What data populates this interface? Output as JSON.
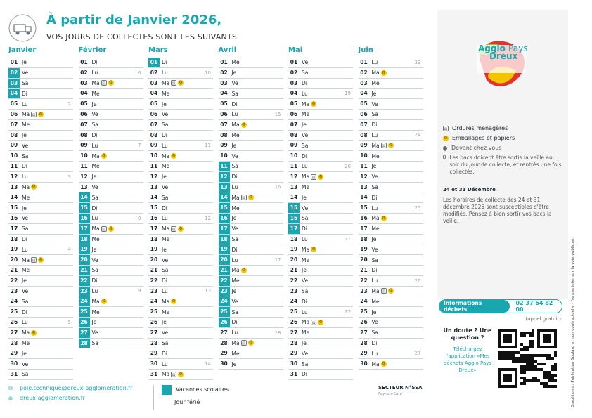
{
  "header": {
    "title": "À partir de Janvier 2026,",
    "subtitle": "VOS JOURS DE COLLECTES SONT LES SUIVANTS"
  },
  "colors": {
    "accent": "#1aa6b0",
    "yellow": "#f2c500"
  },
  "icons": {
    "header": "garbage-truck-icon",
    "emballages": "yellow-bin-icon",
    "om": "grey-bin-icon"
  },
  "months": [
    {
      "name": "Janvier",
      "days": [
        {
          "n": "01",
          "d": "Je"
        },
        {
          "n": "02",
          "d": "Ve",
          "h": true
        },
        {
          "n": "03",
          "d": "Sa",
          "h": true
        },
        {
          "n": "04",
          "d": "Di",
          "h": true
        },
        {
          "n": "05",
          "d": "Lu",
          "w": "2"
        },
        {
          "n": "06",
          "d": "Ma",
          "om": true,
          "emb": true
        },
        {
          "n": "07",
          "d": "Me"
        },
        {
          "n": "08",
          "d": "Je"
        },
        {
          "n": "09",
          "d": "Ve"
        },
        {
          "n": "10",
          "d": "Sa"
        },
        {
          "n": "11",
          "d": "Di"
        },
        {
          "n": "12",
          "d": "Lu",
          "w": "3"
        },
        {
          "n": "13",
          "d": "Ma",
          "emb": true
        },
        {
          "n": "14",
          "d": "Me"
        },
        {
          "n": "15",
          "d": "Je"
        },
        {
          "n": "16",
          "d": "Ve"
        },
        {
          "n": "17",
          "d": "Sa"
        },
        {
          "n": "18",
          "d": "Di"
        },
        {
          "n": "19",
          "d": "Lu",
          "w": "4"
        },
        {
          "n": "20",
          "d": "Ma",
          "om": true,
          "emb": true
        },
        {
          "n": "21",
          "d": "Me"
        },
        {
          "n": "22",
          "d": "Je"
        },
        {
          "n": "23",
          "d": "Ve"
        },
        {
          "n": "24",
          "d": "Sa"
        },
        {
          "n": "25",
          "d": "Di"
        },
        {
          "n": "26",
          "d": "Lu",
          "w": "5"
        },
        {
          "n": "27",
          "d": "Ma",
          "emb": true
        },
        {
          "n": "28",
          "d": "Me"
        },
        {
          "n": "29",
          "d": "Je"
        },
        {
          "n": "30",
          "d": "Ve"
        },
        {
          "n": "31",
          "d": "Sa"
        }
      ]
    },
    {
      "name": "Février",
      "days": [
        {
          "n": "01",
          "d": "Di"
        },
        {
          "n": "02",
          "d": "Lu",
          "w": "6"
        },
        {
          "n": "03",
          "d": "Ma",
          "om": true,
          "emb": true
        },
        {
          "n": "04",
          "d": "Me"
        },
        {
          "n": "05",
          "d": "Je"
        },
        {
          "n": "06",
          "d": "Ve"
        },
        {
          "n": "07",
          "d": "Sa"
        },
        {
          "n": "08",
          "d": "Di"
        },
        {
          "n": "09",
          "d": "Lu",
          "w": "7"
        },
        {
          "n": "10",
          "d": "Ma",
          "emb": true
        },
        {
          "n": "11",
          "d": "Me"
        },
        {
          "n": "12",
          "d": "Je"
        },
        {
          "n": "13",
          "d": "Ve"
        },
        {
          "n": "14",
          "d": "Sa",
          "h": true
        },
        {
          "n": "15",
          "d": "Di",
          "h": true
        },
        {
          "n": "16",
          "d": "Lu",
          "h": true,
          "w": "8"
        },
        {
          "n": "17",
          "d": "Ma",
          "h": true,
          "om": true,
          "emb": true
        },
        {
          "n": "18",
          "d": "Me",
          "h": true
        },
        {
          "n": "19",
          "d": "Je",
          "h": true
        },
        {
          "n": "20",
          "d": "Ve",
          "h": true
        },
        {
          "n": "21",
          "d": "Sa",
          "h": true
        },
        {
          "n": "22",
          "d": "Di",
          "h": true
        },
        {
          "n": "23",
          "d": "Lu",
          "h": true,
          "w": "9"
        },
        {
          "n": "24",
          "d": "Ma",
          "h": true,
          "emb": true
        },
        {
          "n": "25",
          "d": "Me",
          "h": true
        },
        {
          "n": "26",
          "d": "Je",
          "h": true
        },
        {
          "n": "27",
          "d": "Ve",
          "h": true
        },
        {
          "n": "28",
          "d": "Sa",
          "h": true
        }
      ]
    },
    {
      "name": "Mars",
      "days": [
        {
          "n": "01",
          "d": "Di",
          "h": true
        },
        {
          "n": "02",
          "d": "Lu",
          "w": "10"
        },
        {
          "n": "03",
          "d": "Ma",
          "om": true,
          "emb": true
        },
        {
          "n": "04",
          "d": "Me"
        },
        {
          "n": "05",
          "d": "Je"
        },
        {
          "n": "06",
          "d": "Ve"
        },
        {
          "n": "07",
          "d": "Sa"
        },
        {
          "n": "08",
          "d": "Di"
        },
        {
          "n": "09",
          "d": "Lu",
          "w": "11"
        },
        {
          "n": "10",
          "d": "Ma",
          "emb": true
        },
        {
          "n": "11",
          "d": "Me"
        },
        {
          "n": "12",
          "d": "Je"
        },
        {
          "n": "13",
          "d": "Ve"
        },
        {
          "n": "14",
          "d": "Sa"
        },
        {
          "n": "15",
          "d": "Di"
        },
        {
          "n": "16",
          "d": "Lu",
          "w": "12"
        },
        {
          "n": "17",
          "d": "Ma",
          "om": true,
          "emb": true
        },
        {
          "n": "18",
          "d": "Me"
        },
        {
          "n": "19",
          "d": "Je"
        },
        {
          "n": "20",
          "d": "Ve"
        },
        {
          "n": "21",
          "d": "Sa"
        },
        {
          "n": "22",
          "d": "Di"
        },
        {
          "n": "23",
          "d": "Lu",
          "w": "13"
        },
        {
          "n": "24",
          "d": "Ma",
          "emb": true
        },
        {
          "n": "25",
          "d": "Me"
        },
        {
          "n": "26",
          "d": "Je"
        },
        {
          "n": "27",
          "d": "Ve"
        },
        {
          "n": "28",
          "d": "Sa"
        },
        {
          "n": "29",
          "d": "Di"
        },
        {
          "n": "30",
          "d": "Lu",
          "w": "14"
        },
        {
          "n": "31",
          "d": "Ma",
          "om": true,
          "emb": true
        }
      ]
    },
    {
      "name": "Avril",
      "days": [
        {
          "n": "01",
          "d": "Me"
        },
        {
          "n": "02",
          "d": "Je"
        },
        {
          "n": "03",
          "d": "Ve"
        },
        {
          "n": "04",
          "d": "Sa"
        },
        {
          "n": "05",
          "d": "Di"
        },
        {
          "n": "06",
          "d": "Lu",
          "w": "15"
        },
        {
          "n": "07",
          "d": "Ma",
          "emb": true
        },
        {
          "n": "08",
          "d": "Me"
        },
        {
          "n": "09",
          "d": "Je"
        },
        {
          "n": "10",
          "d": "Ve"
        },
        {
          "n": "11",
          "d": "Sa",
          "h": true
        },
        {
          "n": "12",
          "d": "Di",
          "h": true
        },
        {
          "n": "13",
          "d": "Lu",
          "h": true,
          "w": "16"
        },
        {
          "n": "14",
          "d": "Ma",
          "h": true,
          "om": true,
          "emb": true
        },
        {
          "n": "15",
          "d": "Me",
          "h": true
        },
        {
          "n": "16",
          "d": "Je",
          "h": true
        },
        {
          "n": "17",
          "d": "Ve",
          "h": true
        },
        {
          "n": "18",
          "d": "Sa",
          "h": true
        },
        {
          "n": "19",
          "d": "Di",
          "h": true
        },
        {
          "n": "20",
          "d": "Lu",
          "h": true,
          "w": "17"
        },
        {
          "n": "21",
          "d": "Ma",
          "h": true,
          "emb": true
        },
        {
          "n": "22",
          "d": "Me",
          "h": true
        },
        {
          "n": "23",
          "d": "Je",
          "h": true
        },
        {
          "n": "24",
          "d": "Ve",
          "h": true
        },
        {
          "n": "25",
          "d": "Sa",
          "h": true
        },
        {
          "n": "26",
          "d": "Di",
          "h": true
        },
        {
          "n": "27",
          "d": "Lu",
          "w": "18"
        },
        {
          "n": "28",
          "d": "Ma",
          "om": true,
          "emb": true
        },
        {
          "n": "29",
          "d": "Me"
        },
        {
          "n": "30",
          "d": "Je"
        }
      ]
    },
    {
      "name": "Mai",
      "days": [
        {
          "n": "01",
          "d": "Ve"
        },
        {
          "n": "02",
          "d": "Sa"
        },
        {
          "n": "03",
          "d": "Di"
        },
        {
          "n": "04",
          "d": "Lu",
          "w": "19"
        },
        {
          "n": "05",
          "d": "Ma",
          "emb": true
        },
        {
          "n": "06",
          "d": "Me"
        },
        {
          "n": "07",
          "d": "Je"
        },
        {
          "n": "08",
          "d": "Ve"
        },
        {
          "n": "09",
          "d": "Sa"
        },
        {
          "n": "10",
          "d": "Di"
        },
        {
          "n": "11",
          "d": "Lu",
          "w": "20"
        },
        {
          "n": "12",
          "d": "Ma",
          "om": true,
          "emb": true
        },
        {
          "n": "13",
          "d": "Me"
        },
        {
          "n": "14",
          "d": "Je"
        },
        {
          "n": "15",
          "d": "Ve",
          "h": true
        },
        {
          "n": "16",
          "d": "Sa",
          "h": true
        },
        {
          "n": "17",
          "d": "Di",
          "h": true
        },
        {
          "n": "18",
          "d": "Lu",
          "w": "21"
        },
        {
          "n": "19",
          "d": "Ma",
          "emb": true
        },
        {
          "n": "20",
          "d": "Me"
        },
        {
          "n": "21",
          "d": "Je"
        },
        {
          "n": "22",
          "d": "Ve"
        },
        {
          "n": "23",
          "d": "Sa"
        },
        {
          "n": "24",
          "d": "Di"
        },
        {
          "n": "25",
          "d": "Lu",
          "w": "22"
        },
        {
          "n": "26",
          "d": "Ma",
          "om": true,
          "emb": true
        },
        {
          "n": "27",
          "d": "Me"
        },
        {
          "n": "28",
          "d": "Je"
        },
        {
          "n": "29",
          "d": "Ve"
        },
        {
          "n": "30",
          "d": "Sa"
        },
        {
          "n": "31",
          "d": "Di"
        }
      ]
    },
    {
      "name": "Juin",
      "days": [
        {
          "n": "01",
          "d": "Lu",
          "w": "23"
        },
        {
          "n": "02",
          "d": "Ma",
          "emb": true
        },
        {
          "n": "03",
          "d": "Me"
        },
        {
          "n": "04",
          "d": "Je"
        },
        {
          "n": "05",
          "d": "Ve"
        },
        {
          "n": "06",
          "d": "Sa"
        },
        {
          "n": "07",
          "d": "Di"
        },
        {
          "n": "08",
          "d": "Lu",
          "w": "24"
        },
        {
          "n": "09",
          "d": "Ma",
          "om": true,
          "emb": true
        },
        {
          "n": "10",
          "d": "Me"
        },
        {
          "n": "11",
          "d": "Je"
        },
        {
          "n": "12",
          "d": "Ve"
        },
        {
          "n": "13",
          "d": "Sa"
        },
        {
          "n": "14",
          "d": "Di"
        },
        {
          "n": "15",
          "d": "Lu",
          "w": "25"
        },
        {
          "n": "16",
          "d": "Ma",
          "emb": true
        },
        {
          "n": "17",
          "d": "Me"
        },
        {
          "n": "18",
          "d": "Je"
        },
        {
          "n": "19",
          "d": "Ve"
        },
        {
          "n": "20",
          "d": "Sa"
        },
        {
          "n": "21",
          "d": "Di"
        },
        {
          "n": "22",
          "d": "Lu",
          "w": "26"
        },
        {
          "n": "23",
          "d": "Ma",
          "om": true,
          "emb": true
        },
        {
          "n": "24",
          "d": "Me"
        },
        {
          "n": "25",
          "d": "Je"
        },
        {
          "n": "26",
          "d": "Ve"
        },
        {
          "n": "27",
          "d": "Sa"
        },
        {
          "n": "28",
          "d": "Di"
        },
        {
          "n": "29",
          "d": "Lu",
          "w": "27"
        },
        {
          "n": "30",
          "d": "Ma",
          "emb": true
        }
      ]
    }
  ],
  "sidebar": {
    "logo": {
      "line1": "Agglo",
      "line2": "Pays",
      "line3": "Dreux"
    },
    "legend": {
      "om": "Ordures ménagères",
      "emb": "Emballages et papiers",
      "devant": "Devant chez vous",
      "bacs": "Les bacs doivent être sortis la veille au soir du jour de collecte, et rentrés une fois collectés."
    },
    "notice_title": "24 et 31 Décembre",
    "notice_text": "Les horaires de collecte des 24 et 31 décembre 2025 sont susceptibles d'être modifiés. Pensez à bien sortir vos bacs la veille.",
    "info_label": "Informations déchets",
    "phone": "02 37 64 82 00",
    "free": "(appel gratuit)",
    "doubt_q": "Un doute ? Une question ?",
    "doubt_cta": "Téléchargez l'application «Mes déchets Agglo Pays Dreux»"
  },
  "side_text": "Graphisme : Publication Soulard et non contractuelle - Ne pas jeter sur la voie publique.",
  "footer": {
    "email": "pole.technique@dreux-agglomeration.fr",
    "site": "dreux-agglomeration.fr",
    "vacances": "Vacances scolaires",
    "ferie": "Jour férié",
    "secteur": "SECTEUR N°SSA",
    "secteur_sub": "Fay-sur-Eure"
  }
}
